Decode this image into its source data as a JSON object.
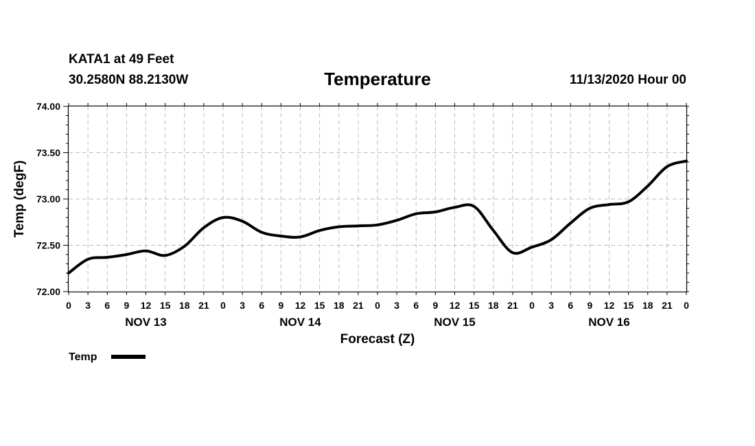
{
  "header": {
    "station": "KATA1 at 49 Feet",
    "coords": "30.2580N 88.2130W",
    "title": "Temperature",
    "run": "11/13/2020 Hour 00"
  },
  "chart_data": {
    "type": "line",
    "title": "Temperature",
    "xlabel": "Forecast (Z)",
    "ylabel": "Temp (degF)",
    "ylim": [
      72.0,
      74.0
    ],
    "yticks": [
      "72.00",
      "72.50",
      "73.00",
      "73.50",
      "74.00"
    ],
    "xlim": [
      0,
      96
    ],
    "hour_ticks": [
      "0",
      "3",
      "6",
      "9",
      "12",
      "15",
      "18",
      "21",
      "0",
      "3",
      "6",
      "9",
      "12",
      "15",
      "18",
      "21",
      "0",
      "3",
      "6",
      "9",
      "12",
      "15",
      "18",
      "21",
      "0",
      "3",
      "6",
      "9",
      "12",
      "15",
      "18",
      "21",
      "0"
    ],
    "day_labels": [
      "NOV 13",
      "NOV 14",
      "NOV 15",
      "NOV 16"
    ],
    "grid": true,
    "legend_position": "bottom-left",
    "color": "#000000",
    "series": [
      {
        "name": "Temp",
        "x": [
          0,
          3,
          6,
          9,
          12,
          15,
          18,
          21,
          24,
          27,
          30,
          33,
          36,
          39,
          42,
          45,
          48,
          51,
          54,
          57,
          60,
          63,
          66,
          69,
          72,
          75,
          78,
          81,
          84,
          87,
          90,
          93,
          96
        ],
        "values": [
          72.2,
          72.35,
          72.37,
          72.4,
          72.44,
          72.39,
          72.49,
          72.69,
          72.8,
          72.76,
          72.64,
          72.6,
          72.59,
          72.66,
          72.7,
          72.71,
          72.72,
          72.77,
          72.84,
          72.86,
          72.91,
          72.92,
          72.66,
          72.42,
          72.48,
          72.56,
          72.74,
          72.9,
          72.94,
          72.97,
          73.14,
          73.35,
          73.41
        ]
      }
    ]
  }
}
